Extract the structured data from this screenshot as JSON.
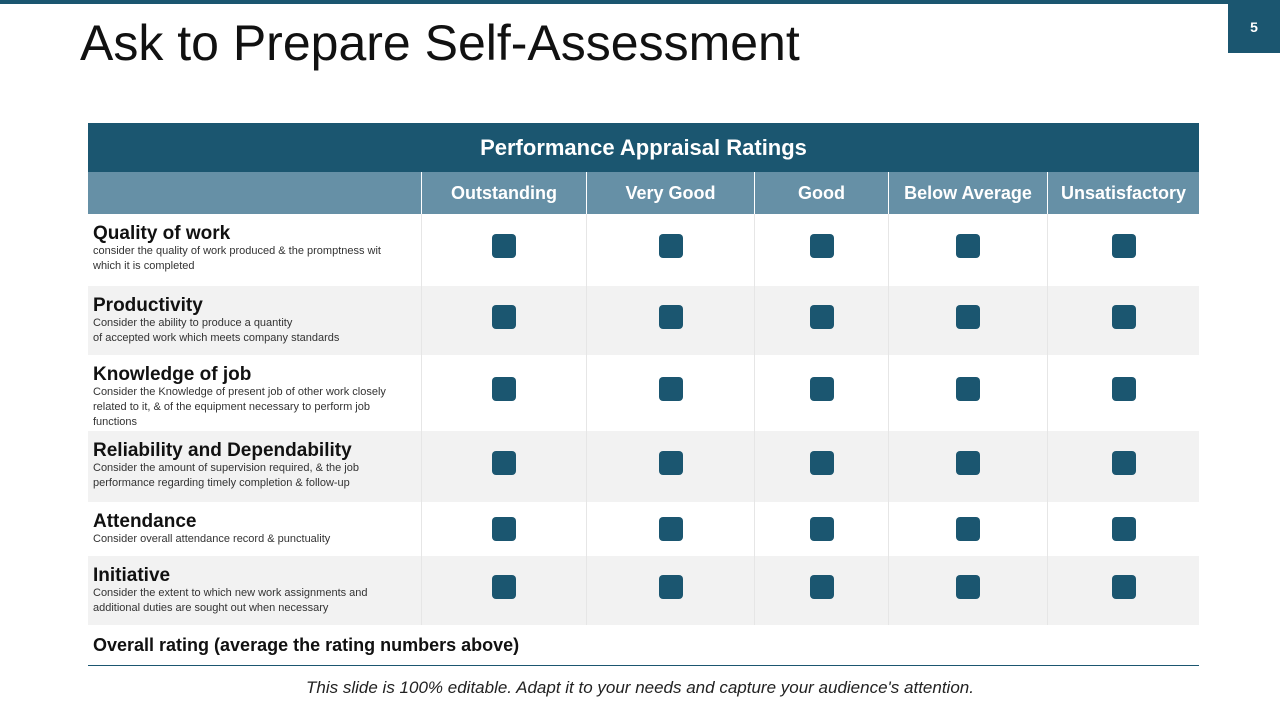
{
  "slide": {
    "title": "Ask to Prepare Self-Assessment",
    "page_number": "5"
  },
  "table": {
    "title": "Performance Appraisal Ratings",
    "columns": [
      "Outstanding",
      "Very Good",
      "Good",
      "Below Average",
      "Unsatisfactory"
    ],
    "rows": [
      {
        "name": "Quality of work",
        "description": [
          "consider the quality of work produced & the promptness wit",
          "which it is completed"
        ]
      },
      {
        "name": "Productivity",
        "description": [
          "Consider the ability to produce a quantity",
          "of accepted work which meets company standards"
        ]
      },
      {
        "name": "Knowledge of job",
        "description": [
          "Consider the Knowledge of present job of other work closely",
          "related to it, & of the equipment necessary to perform job",
          "functions"
        ]
      },
      {
        "name": "Reliability and Dependability",
        "description": [
          "Consider the amount of supervision required, & the job",
          "performance regarding timely completion & follow-up"
        ]
      },
      {
        "name": "Attendance",
        "description": [
          "Consider overall attendance record & punctuality"
        ]
      },
      {
        "name": "Initiative",
        "description": [
          "Consider the extent to which new work assignments and",
          "additional duties are sought out when necessary"
        ]
      }
    ],
    "overall": "Overall rating (average the rating numbers above)"
  },
  "footer": "This slide is 100% editable. Adapt it to your needs and capture your audience's attention."
}
